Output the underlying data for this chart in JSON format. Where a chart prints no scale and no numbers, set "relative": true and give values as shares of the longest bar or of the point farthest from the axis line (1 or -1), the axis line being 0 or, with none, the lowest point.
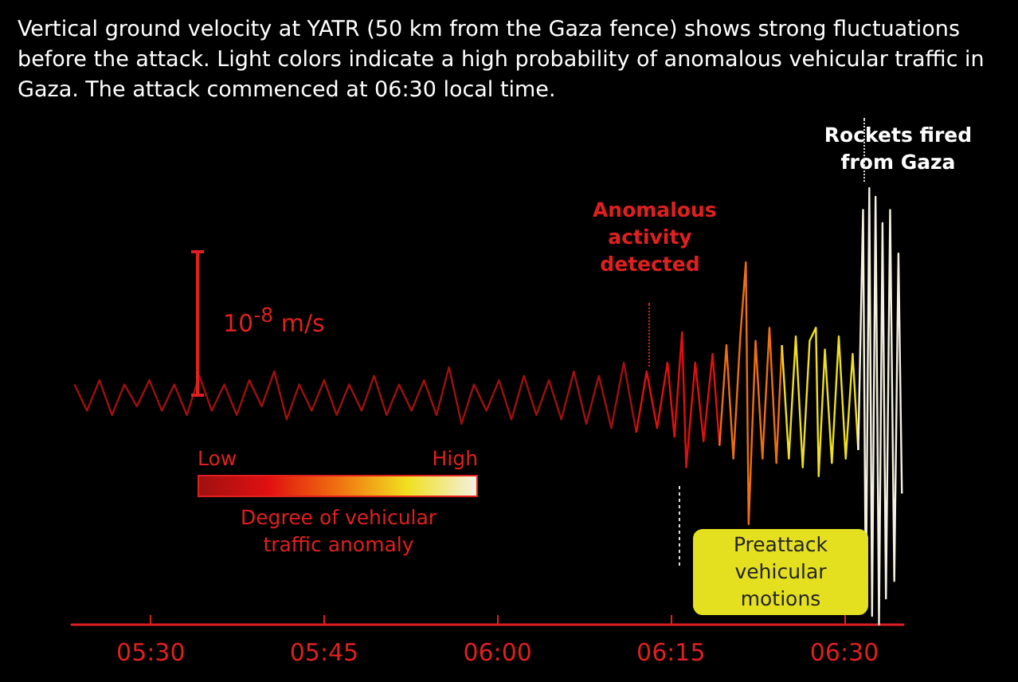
{
  "chart_data": {
    "type": "line",
    "relative": true,
    "title": "Vertical ground velocity at YATR (50 km from the Gaza fence) shows strong fluctuations before the attack. Light colors indicate a high probability of anomalous vehicular traffic in Gaza. The attack commenced at 06:30 local time.",
    "xlim": [
      5.386,
      6.585
    ],
    "xticks": [
      {
        "value": 5.5,
        "label": "05:30"
      },
      {
        "value": 5.75,
        "label": "05:45"
      },
      {
        "value": 6.0,
        "label": "06:00"
      },
      {
        "value": 6.25,
        "label": "06:15"
      },
      {
        "value": 6.5,
        "label": "06:30"
      }
    ],
    "clabel": "Degree of vehicular traffic anomaly",
    "annotations": [
      "Anomalous activity detected",
      {
        "text": "Rockets fired from Gaza",
        "x": 6.527,
        "y": 1.0
      },
      "Preattack vehicular motions",
      "10$^{-8}$ m/s",
      "Low",
      "High"
    ],
    "grid": false,
    "marker": "none",
    "line_style": "solid",
    "series": [
      {
        "color": "#a01010",
        "x": [
          5.39,
          5.408,
          5.426,
          5.444,
          5.462,
          5.48,
          5.498,
          5.516,
          5.534,
          5.552,
          5.57,
          5.588,
          5.606,
          5.624,
          5.642,
          5.66,
          5.678,
          5.696,
          5.714,
          5.732,
          5.75,
          5.768,
          5.786,
          5.804,
          5.822,
          5.84,
          5.858,
          5.876,
          5.894,
          5.912,
          5.93,
          5.948,
          5.966,
          5.984,
          6.002,
          6.02,
          6.038,
          6.056,
          6.074,
          6.092,
          6.11,
          6.128,
          6.146,
          6.164,
          6.182,
          6.2
        ],
        "values": [
          0.55,
          0.49,
          0.56,
          0.48,
          0.55,
          0.5,
          0.56,
          0.49,
          0.55,
          0.48,
          0.57,
          0.49,
          0.55,
          0.48,
          0.56,
          0.5,
          0.58,
          0.47,
          0.55,
          0.49,
          0.56,
          0.48,
          0.55,
          0.49,
          0.57,
          0.48,
          0.55,
          0.49,
          0.56,
          0.48,
          0.59,
          0.46,
          0.55,
          0.49,
          0.56,
          0.47,
          0.57,
          0.48,
          0.56,
          0.47,
          0.58,
          0.46,
          0.57,
          0.45,
          0.6,
          0.44
        ]
      },
      {
        "color": "#e01010",
        "x": [
          6.2,
          6.215,
          6.23,
          6.245,
          6.255,
          6.266,
          6.272,
          6.285,
          6.297,
          6.31,
          6.32
        ],
        "values": [
          0.44,
          0.58,
          0.45,
          0.6,
          0.43,
          0.67,
          0.36,
          0.6,
          0.42,
          0.62,
          0.41
        ]
      },
      {
        "color": "#f07010",
        "x": [
          6.32,
          6.33,
          6.34,
          6.35,
          6.358,
          6.362,
          6.372,
          6.382,
          6.392,
          6.402,
          6.41
        ],
        "values": [
          0.41,
          0.64,
          0.38,
          0.66,
          0.83,
          0.23,
          0.65,
          0.38,
          0.68,
          0.37,
          0.64
        ]
      },
      {
        "color": "#f0e020",
        "x": [
          6.41,
          6.42,
          6.43,
          6.44,
          6.45,
          6.459,
          6.463,
          6.472,
          6.482,
          6.492,
          6.502,
          6.512,
          6.52
        ],
        "values": [
          0.64,
          0.38,
          0.66,
          0.36,
          0.65,
          0.68,
          0.34,
          0.63,
          0.37,
          0.66,
          0.38,
          0.62,
          0.4
        ]
      },
      {
        "color": "#f4f0e0",
        "x": [
          6.52,
          6.527,
          6.531,
          6.536,
          6.54,
          6.545,
          6.55,
          6.555,
          6.56,
          6.566,
          6.572,
          6.578,
          6.583
        ],
        "values": [
          0.4,
          0.95,
          0.05,
          1.0,
          0.02,
          0.98,
          0.0,
          0.92,
          0.06,
          0.95,
          0.1,
          0.85,
          0.3
        ]
      }
    ]
  }
}
